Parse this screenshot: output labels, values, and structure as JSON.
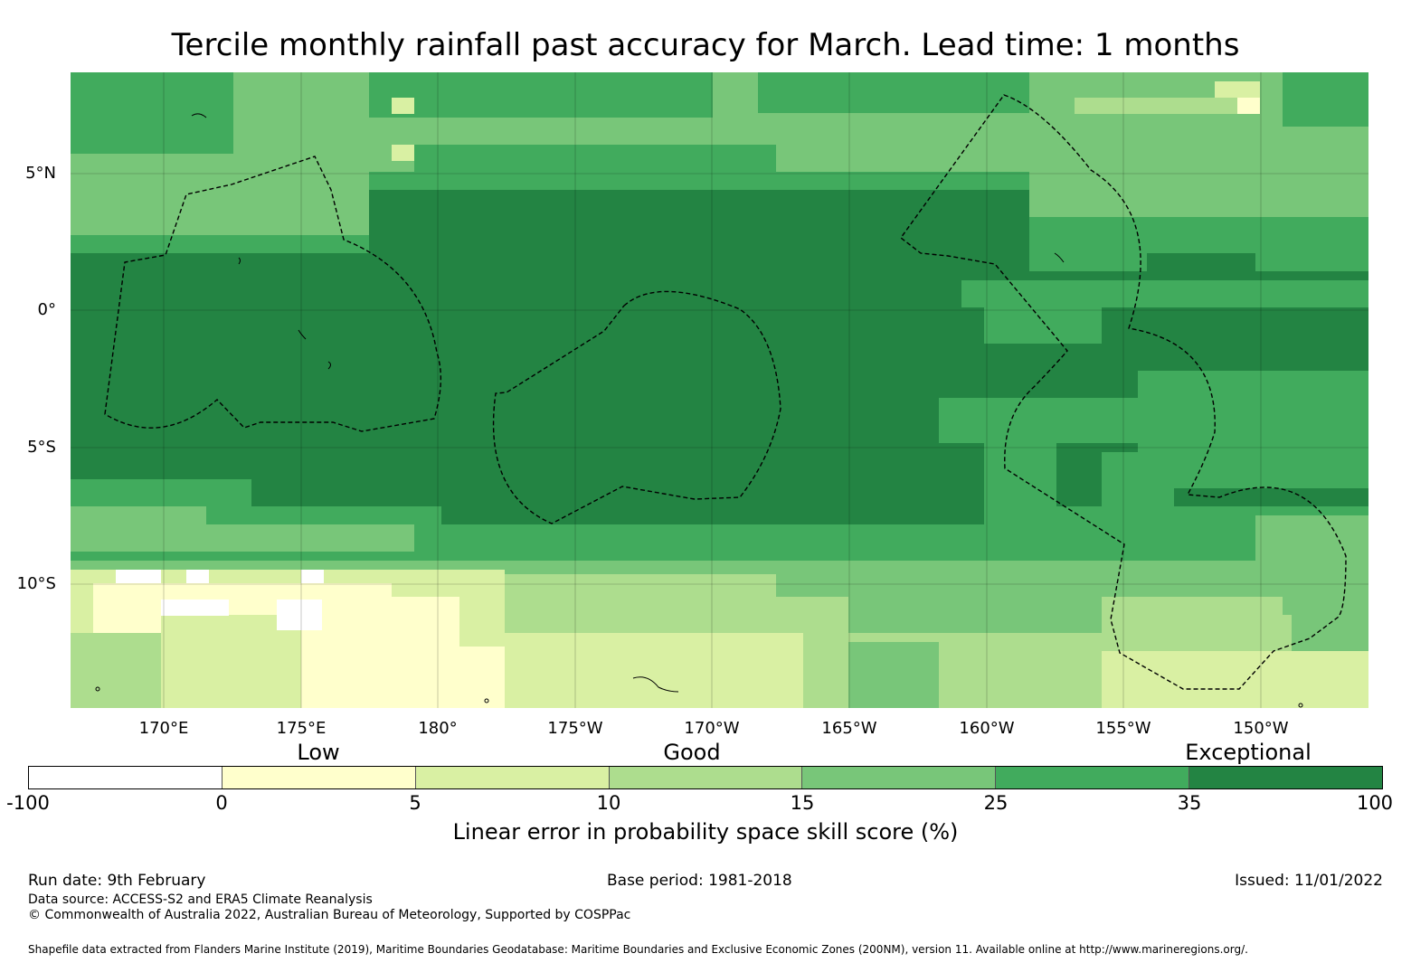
{
  "title": "Tercile monthly rainfall past accuracy for March. Lead time: 1 months",
  "map": {
    "lat_labels": [
      "5°N",
      "0°",
      "5°S",
      "10°S"
    ],
    "lon_labels": [
      "170°E",
      "175°E",
      "180°",
      "175°W",
      "170°W",
      "165°W",
      "160°W",
      "155°W",
      "150°W"
    ]
  },
  "colorbar": {
    "categories": [
      "Low",
      "Good",
      "Exceptional"
    ],
    "ticks": [
      "-100",
      "0",
      "5",
      "10",
      "15",
      "25",
      "35",
      "100"
    ],
    "colors": [
      "#ffffff",
      "#ffffcc",
      "#d9f0a3",
      "#addd8e",
      "#78c679",
      "#41ab5d",
      "#238443"
    ],
    "label": "Linear error in probability space skill score (%)"
  },
  "footer": {
    "run_date": "Run date: 9th February",
    "base_period": "Base period: 1981-2018",
    "issued": "Issued: 11/01/2022",
    "data_source": "Data source: ACCESS-S2 and ERA5 Climate Reanalysis",
    "copyright": "© Commonwealth of Australia 2022, Australian Bureau of Meteorology, Supported by COSPPac",
    "shapefile": "Shapefile data extracted from Flanders Marine Institute (2019), Maritime Boundaries Geodatabase: Maritime Boundaries and Exclusive Economic Zones (200NM), version 11. Available online at http://www.marineregions.org/."
  }
}
